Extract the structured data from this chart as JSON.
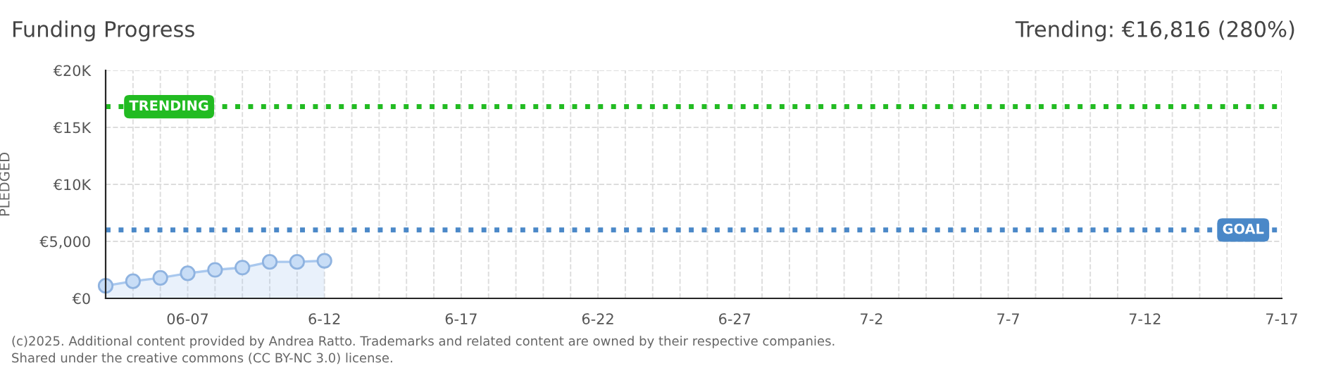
{
  "chart_data": {
    "type": "area",
    "title": "Funding Progress",
    "subtitle": "Trending: €16,816 (280%)",
    "ylabel": "PLEDGED",
    "x": [
      "2025-06-04",
      "2025-06-05",
      "2025-06-06",
      "2025-06-07",
      "2025-06-08",
      "2025-06-09",
      "2025-06-10",
      "2025-06-11",
      "2025-06-12"
    ],
    "series": [
      {
        "color": "#a9c8ee",
        "values": [
          1100,
          1500,
          1800,
          2200,
          2500,
          2700,
          3200,
          3200,
          3300
        ]
      }
    ],
    "marker": "circle",
    "grid": true,
    "xlim": [
      "2025-06-04",
      "2025-07-17"
    ],
    "xticks": [
      {
        "value": "2025-06-05",
        "label": null
      },
      {
        "value": "2025-06-06",
        "label": null
      },
      {
        "value": "2025-06-07",
        "label": "06-07"
      },
      {
        "value": "2025-06-08",
        "label": null
      },
      {
        "value": "2025-06-09",
        "label": null
      },
      {
        "value": "2025-06-10",
        "label": null
      },
      {
        "value": "2025-06-11",
        "label": null
      },
      {
        "value": "2025-06-12",
        "label": "6-12"
      },
      {
        "value": "2025-06-13",
        "label": null
      },
      {
        "value": "2025-06-14",
        "label": null
      },
      {
        "value": "2025-06-15",
        "label": null
      },
      {
        "value": "2025-06-16",
        "label": null
      },
      {
        "value": "2025-06-17",
        "label": "6-17"
      },
      {
        "value": "2025-06-18",
        "label": null
      },
      {
        "value": "2025-06-19",
        "label": null
      },
      {
        "value": "2025-06-20",
        "label": null
      },
      {
        "value": "2025-06-21",
        "label": null
      },
      {
        "value": "2025-06-22",
        "label": "6-22"
      },
      {
        "value": "2025-06-23",
        "label": null
      },
      {
        "value": "2025-06-24",
        "label": null
      },
      {
        "value": "2025-06-25",
        "label": null
      },
      {
        "value": "2025-06-26",
        "label": null
      },
      {
        "value": "2025-06-27",
        "label": "6-27"
      },
      {
        "value": "2025-06-28",
        "label": null
      },
      {
        "value": "2025-06-29",
        "label": null
      },
      {
        "value": "2025-06-30",
        "label": null
      },
      {
        "value": "2025-07-01",
        "label": null
      },
      {
        "value": "2025-07-02",
        "label": "7-2"
      },
      {
        "value": "2025-07-03",
        "label": null
      },
      {
        "value": "2025-07-04",
        "label": null
      },
      {
        "value": "2025-07-05",
        "label": null
      },
      {
        "value": "2025-07-06",
        "label": null
      },
      {
        "value": "2025-07-07",
        "label": "7-7"
      },
      {
        "value": "2025-07-08",
        "label": null
      },
      {
        "value": "2025-07-09",
        "label": null
      },
      {
        "value": "2025-07-10",
        "label": null
      },
      {
        "value": "2025-07-11",
        "label": null
      },
      {
        "value": "2025-07-12",
        "label": "7-12"
      },
      {
        "value": "2025-07-13",
        "label": null
      },
      {
        "value": "2025-07-14",
        "label": null
      },
      {
        "value": "2025-07-15",
        "label": null
      },
      {
        "value": "2025-07-16",
        "label": null
      },
      {
        "value": "2025-07-17",
        "label": "7-17"
      }
    ],
    "ylim": [
      0,
      20000
    ],
    "yticks": [
      {
        "value": 0,
        "label": "€0"
      },
      {
        "value": 5000,
        "label": "€5,000"
      },
      {
        "value": 10000,
        "label": "€10K"
      },
      {
        "value": 15000,
        "label": "€15K"
      },
      {
        "value": 20000,
        "label": "€20K"
      }
    ],
    "ref_lines": [
      {
        "axis": "y",
        "value": 16816,
        "label": "TRENDING",
        "color": "#22bb22",
        "line_style": "dotted"
      },
      {
        "axis": "y",
        "value": 6000,
        "label": "GOAL",
        "color": "#4a88c8",
        "line_style": "dotted"
      }
    ],
    "annotations": [
      "(c)2025. Additional content provided by Andrea Ratto. Trademarks and related content are owned by their respective companies.",
      "Shared under the creative commons (CC BY-NC 3.0) license."
    ]
  }
}
